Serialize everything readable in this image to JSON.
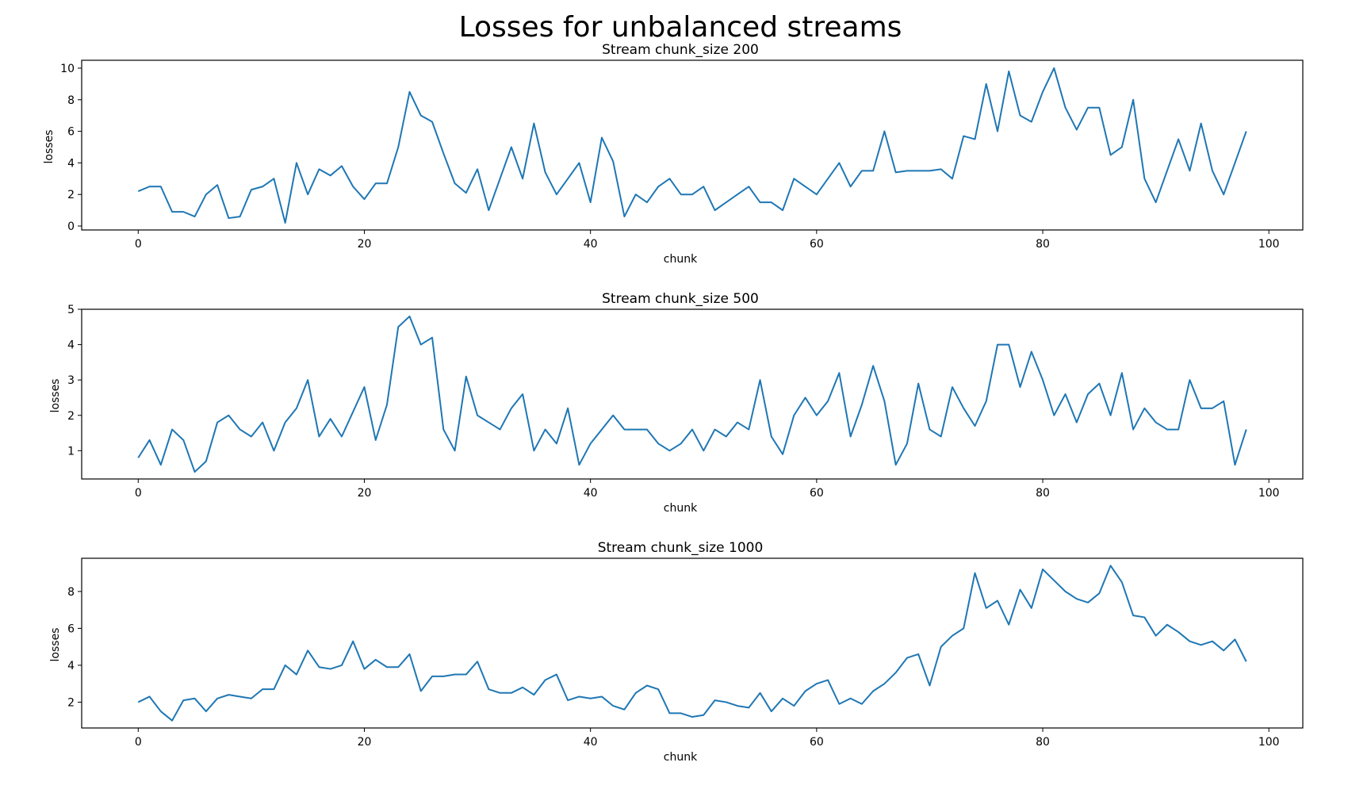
{
  "figure": {
    "suptitle": "Losses for unbalanced streams"
  },
  "colors": {
    "line": "#1f77b4",
    "axes": "#000000",
    "background": "#ffffff"
  },
  "chart_data": [
    {
      "type": "line",
      "title": "Stream chunk_size 200",
      "xlabel": "chunk",
      "ylabel": "losses",
      "xlim": [
        -5,
        103
      ],
      "ylim": [
        -0.25,
        10.5
      ],
      "xticks": [
        0,
        20,
        40,
        60,
        80,
        100
      ],
      "yticks": [
        0,
        2,
        4,
        6,
        8,
        10
      ],
      "grid": false,
      "x_start": 0,
      "values": [
        2.2,
        2.5,
        2.5,
        0.9,
        0.9,
        0.6,
        2.0,
        2.6,
        0.5,
        0.6,
        2.3,
        2.5,
        3.0,
        0.2,
        4.0,
        2.0,
        3.6,
        3.2,
        3.8,
        2.5,
        1.7,
        2.7,
        2.7,
        5.0,
        8.5,
        7.0,
        6.6,
        4.6,
        2.7,
        2.1,
        3.6,
        1.0,
        3.0,
        5.0,
        3.0,
        6.5,
        3.4,
        2.0,
        3.0,
        4.0,
        1.5,
        5.6,
        4.1,
        0.6,
        2.0,
        1.5,
        2.5,
        3.0,
        2.0,
        2.0,
        2.5,
        1.0,
        1.5,
        2.0,
        2.5,
        1.5,
        1.5,
        1.0,
        3.0,
        2.5,
        2.0,
        3.0,
        4.0,
        2.5,
        3.5,
        3.5,
        6.0,
        3.4,
        3.5,
        3.5,
        3.5,
        3.6,
        3.0,
        5.7,
        5.5,
        9.0,
        6.0,
        9.8,
        7.0,
        6.6,
        8.5,
        10.0,
        7.5,
        6.1,
        7.5,
        7.5,
        4.5,
        5.0,
        8.0,
        3.0,
        1.5,
        3.5,
        5.5,
        3.5,
        6.5,
        3.5,
        2.0,
        4.0,
        6.0
      ]
    },
    {
      "type": "line",
      "title": "Stream chunk_size 500",
      "xlabel": "chunk",
      "ylabel": "losses",
      "xlim": [
        -5,
        103
      ],
      "ylim": [
        0.2,
        5.0
      ],
      "xticks": [
        0,
        20,
        40,
        60,
        80,
        100
      ],
      "yticks": [
        1,
        2,
        3,
        4,
        5
      ],
      "grid": false,
      "x_start": 0,
      "values": [
        0.8,
        1.3,
        0.6,
        1.6,
        1.3,
        0.4,
        0.7,
        1.8,
        2.0,
        1.6,
        1.4,
        1.8,
        1.0,
        1.8,
        2.2,
        3.0,
        1.4,
        1.9,
        1.4,
        2.1,
        2.8,
        1.3,
        2.3,
        4.5,
        4.8,
        4.0,
        4.2,
        1.6,
        1.0,
        3.1,
        2.0,
        1.8,
        1.6,
        2.2,
        2.6,
        1.0,
        1.6,
        1.2,
        2.2,
        0.6,
        1.2,
        1.6,
        2.0,
        1.6,
        1.6,
        1.6,
        1.2,
        1.0,
        1.2,
        1.6,
        1.0,
        1.6,
        1.4,
        1.8,
        1.6,
        3.0,
        1.4,
        0.9,
        2.0,
        2.5,
        2.0,
        2.4,
        3.2,
        1.4,
        2.3,
        3.4,
        2.4,
        0.6,
        1.2,
        2.9,
        1.6,
        1.4,
        2.8,
        2.2,
        1.7,
        2.4,
        4.0,
        4.0,
        2.8,
        3.8,
        3.0,
        2.0,
        2.6,
        1.8,
        2.6,
        2.9,
        2.0,
        3.2,
        1.6,
        2.2,
        1.8,
        1.6,
        1.6,
        3.0,
        2.2,
        2.2,
        2.4,
        0.6,
        1.6
      ]
    },
    {
      "type": "line",
      "title": "Stream chunk_size 1000",
      "xlabel": "chunk",
      "ylabel": "losses",
      "xlim": [
        -5,
        103
      ],
      "ylim": [
        0.6,
        9.8
      ],
      "xticks": [
        0,
        20,
        40,
        60,
        80,
        100
      ],
      "yticks": [
        2,
        4,
        6,
        8
      ],
      "grid": false,
      "x_start": 0,
      "values": [
        2.0,
        2.3,
        1.5,
        1.0,
        2.1,
        2.2,
        1.5,
        2.2,
        2.4,
        2.3,
        2.2,
        2.7,
        2.7,
        4.0,
        3.5,
        4.8,
        3.9,
        3.8,
        4.0,
        5.3,
        3.8,
        4.3,
        3.9,
        3.9,
        4.6,
        2.6,
        3.4,
        3.4,
        3.5,
        3.5,
        4.2,
        2.7,
        2.5,
        2.5,
        2.8,
        2.4,
        3.2,
        3.5,
        2.1,
        2.3,
        2.2,
        2.3,
        1.8,
        1.6,
        2.5,
        2.9,
        2.7,
        1.4,
        1.4,
        1.2,
        1.3,
        2.1,
        2.0,
        1.8,
        1.7,
        2.5,
        1.5,
        2.2,
        1.8,
        2.6,
        3.0,
        3.2,
        1.9,
        2.2,
        1.9,
        2.6,
        3.0,
        3.6,
        4.4,
        4.6,
        2.9,
        5.0,
        5.6,
        6.0,
        9.0,
        7.1,
        7.5,
        6.2,
        8.1,
        7.1,
        9.2,
        8.6,
        8.0,
        7.6,
        7.4,
        7.9,
        9.4,
        8.5,
        6.7,
        6.6,
        5.6,
        6.2,
        5.8,
        5.3,
        5.1,
        5.3,
        4.8,
        5.4,
        4.2
      ]
    }
  ]
}
